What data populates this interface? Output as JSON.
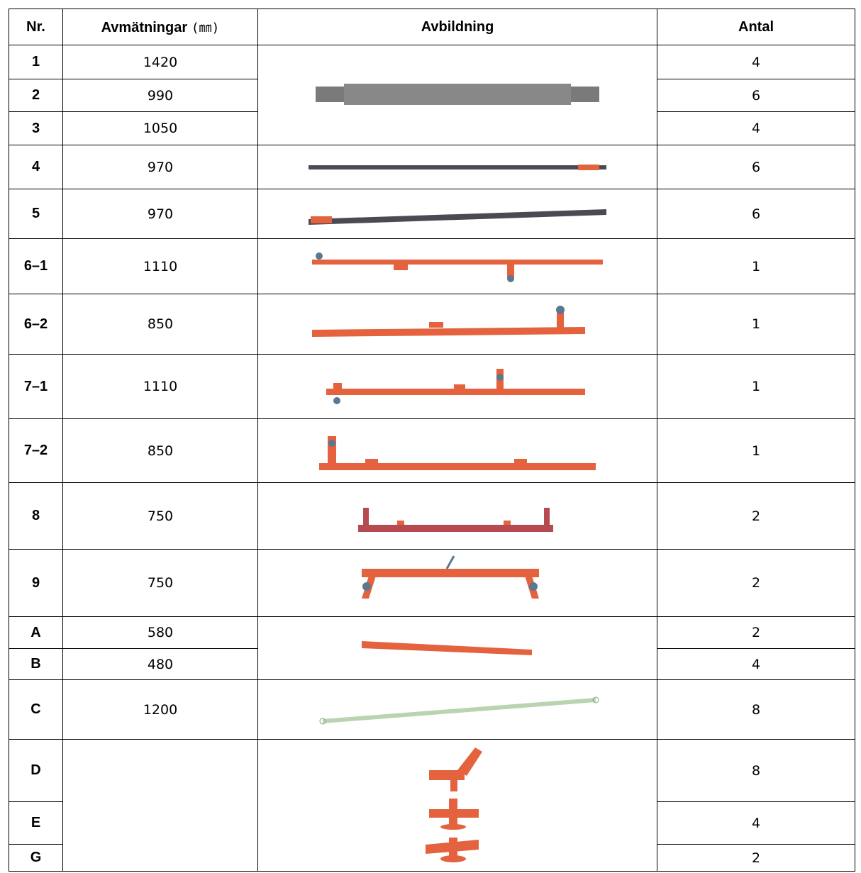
{
  "header": {
    "columns": [
      "Nr.",
      "Avmätningar",
      "Avbildning",
      "Antal"
    ],
    "dimension_unit": "(㎜)"
  },
  "table": {
    "rows": [
      {
        "nr": "1",
        "dimension": 1420,
        "quantity": 4
      },
      {
        "nr": "2",
        "dimension": 990,
        "quantity": 6
      },
      {
        "nr": "3",
        "dimension": 1050,
        "quantity": 4
      },
      {
        "nr": "4",
        "dimension": 970,
        "quantity": 6
      },
      {
        "nr": "5",
        "dimension": 970,
        "quantity": 6
      },
      {
        "nr": "6–1",
        "dimension": 1110,
        "quantity": 1
      },
      {
        "nr": "6–2",
        "dimension": 850,
        "quantity": 1
      },
      {
        "nr": "7–1",
        "dimension": 1110,
        "quantity": 1
      },
      {
        "nr": "7–2",
        "dimension": 850,
        "quantity": 1
      },
      {
        "nr": "8",
        "dimension": 750,
        "quantity": 2
      },
      {
        "nr": "9",
        "dimension": 750,
        "quantity": 2
      },
      {
        "nr": "A",
        "dimension": 580,
        "quantity": 2
      },
      {
        "nr": "B",
        "dimension": 480,
        "quantity": 4
      },
      {
        "nr": "C",
        "dimension": 1200,
        "quantity": 8
      },
      {
        "nr": "D",
        "quantity": 8
      },
      {
        "nr": "E",
        "quantity": 4
      },
      {
        "nr": "G",
        "quantity": 2
      }
    ]
  }
}
